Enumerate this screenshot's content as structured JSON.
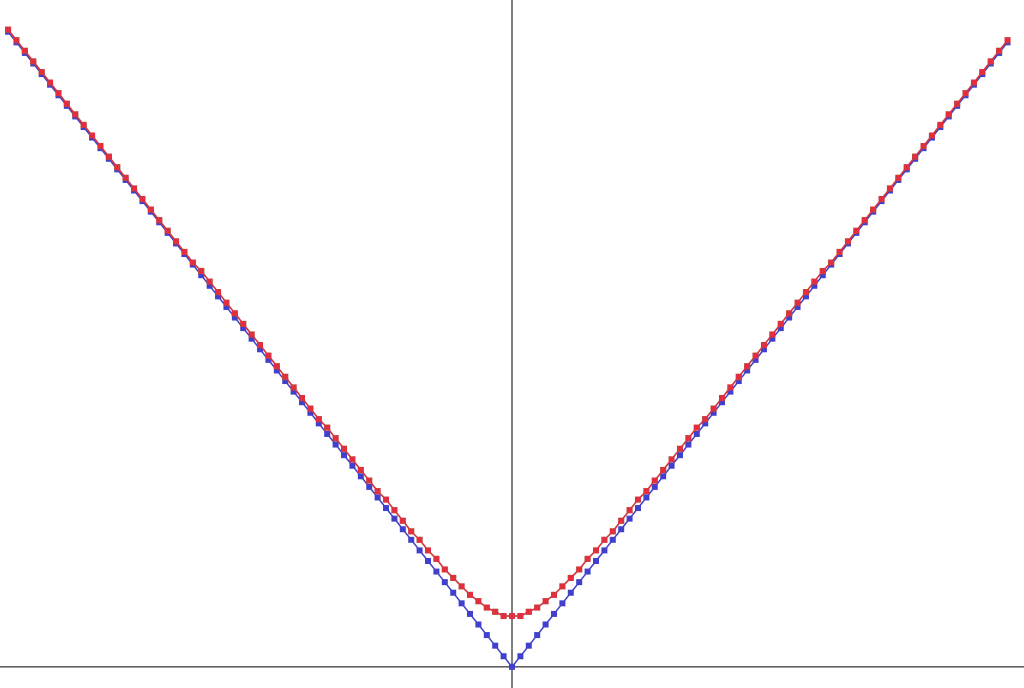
{
  "chart_data": {
    "type": "line",
    "x": [
      -3,
      -2.95,
      -2.9,
      -2.85,
      -2.8,
      -2.75,
      -2.7,
      -2.65,
      -2.6,
      -2.55,
      -2.5,
      -2.45,
      -2.4,
      -2.35,
      -2.3,
      -2.25,
      -2.2,
      -2.15,
      -2.1,
      -2.05,
      -2,
      -1.95,
      -1.9,
      -1.85,
      -1.8,
      -1.75,
      -1.7,
      -1.65,
      -1.6,
      -1.55,
      -1.5,
      -1.45,
      -1.4,
      -1.35,
      -1.3,
      -1.25,
      -1.2,
      -1.15,
      -1.1,
      -1.05,
      -1,
      -0.95,
      -0.9,
      -0.85,
      -0.8,
      -0.75,
      -0.7,
      -0.65,
      -0.6,
      -0.55,
      -0.5,
      -0.45,
      -0.4,
      -0.35,
      -0.3,
      -0.25,
      -0.2,
      -0.15,
      -0.1,
      -0.05,
      0,
      0.05,
      0.1,
      0.15,
      0.2,
      0.25,
      0.3,
      0.35,
      0.4,
      0.45,
      0.5,
      0.55,
      0.6,
      0.65,
      0.7,
      0.75,
      0.8,
      0.85,
      0.9,
      0.95,
      1,
      1.05,
      1.1,
      1.15,
      1.2,
      1.25,
      1.3,
      1.35,
      1.4,
      1.45,
      1.5,
      1.55,
      1.6,
      1.65,
      1.7,
      1.75,
      1.8,
      1.85,
      1.9,
      1.95,
      2,
      2.05,
      2.1,
      2.15,
      2.2,
      2.25,
      2.3,
      2.35,
      2.4,
      2.45,
      2.5,
      2.55,
      2.6,
      2.65,
      2.7,
      2.75,
      2.8,
      2.85,
      2.9,
      2.95
    ],
    "series": [
      {
        "color": "#4040cc",
        "values": [
          3,
          2.95,
          2.9,
          2.85,
          2.8,
          2.75,
          2.7,
          2.65,
          2.6,
          2.55,
          2.5,
          2.45,
          2.4,
          2.35,
          2.3,
          2.25,
          2.2,
          2.15,
          2.1,
          2.05,
          2,
          1.95,
          1.9,
          1.85,
          1.8,
          1.75,
          1.7,
          1.65,
          1.6,
          1.55,
          1.5,
          1.45,
          1.4,
          1.35,
          1.3,
          1.25,
          1.2,
          1.15,
          1.1,
          1.05,
          1,
          0.95,
          0.9,
          0.85,
          0.8,
          0.75,
          0.7,
          0.65,
          0.6,
          0.55,
          0.5,
          0.45,
          0.4,
          0.35,
          0.3,
          0.25,
          0.2,
          0.15,
          0.1,
          0.05,
          0,
          0.05,
          0.1,
          0.15,
          0.2,
          0.25,
          0.3,
          0.35,
          0.4,
          0.45,
          0.5,
          0.55,
          0.6,
          0.65,
          0.7,
          0.75,
          0.8,
          0.85,
          0.9,
          0.95,
          1,
          1.05,
          1.1,
          1.15,
          1.2,
          1.25,
          1.3,
          1.35,
          1.4,
          1.45,
          1.5,
          1.55,
          1.6,
          1.65,
          1.7,
          1.75,
          1.8,
          1.85,
          1.9,
          1.95,
          2,
          2.05,
          2.1,
          2.15,
          2.2,
          2.25,
          2.3,
          2.35,
          2.4,
          2.45,
          2.5,
          2.55,
          2.6,
          2.65,
          2.7,
          2.75,
          2.8,
          2.85,
          2.9,
          2.95
        ]
      },
      {
        "color": "#30b030",
        "values": [
          3.01,
          2.96,
          2.91,
          2.86,
          2.81,
          2.76,
          2.71,
          2.66,
          2.61,
          2.56,
          2.51,
          2.46,
          2.41,
          2.36,
          2.31,
          2.26,
          2.21,
          2.16,
          2.11,
          2.06,
          2.01,
          1.96,
          1.91,
          1.87,
          1.82,
          1.77,
          1.72,
          1.67,
          1.62,
          1.57,
          1.52,
          1.47,
          1.42,
          1.37,
          1.32,
          1.27,
          1.22,
          1.17,
          1.13,
          1.08,
          1.03,
          0.98,
          0.93,
          0.88,
          0.83,
          0.79,
          0.74,
          0.69,
          0.64,
          0.6,
          0.55,
          0.51,
          0.46,
          0.42,
          0.38,
          0.34,
          0.31,
          0.28,
          0.26,
          0.24,
          0.24,
          0.24,
          0.26,
          0.28,
          0.31,
          0.34,
          0.38,
          0.42,
          0.46,
          0.51,
          0.55,
          0.6,
          0.64,
          0.69,
          0.74,
          0.79,
          0.83,
          0.88,
          0.93,
          0.98,
          1.03,
          1.08,
          1.13,
          1.17,
          1.22,
          1.27,
          1.32,
          1.37,
          1.42,
          1.47,
          1.52,
          1.57,
          1.62,
          1.67,
          1.72,
          1.77,
          1.82,
          1.87,
          1.91,
          1.96,
          2.01,
          2.06,
          2.11,
          2.16,
          2.21,
          2.26,
          2.31,
          2.36,
          2.41,
          2.46,
          2.51,
          2.56,
          2.61,
          2.66,
          2.71,
          2.76,
          2.81,
          2.86,
          2.91,
          2.96
        ]
      },
      {
        "color": "#e03040",
        "values": [
          3.01,
          2.96,
          2.91,
          2.86,
          2.81,
          2.76,
          2.71,
          2.66,
          2.61,
          2.56,
          2.51,
          2.46,
          2.41,
          2.36,
          2.31,
          2.26,
          2.21,
          2.16,
          2.11,
          2.06,
          2.01,
          1.96,
          1.91,
          1.87,
          1.82,
          1.77,
          1.72,
          1.67,
          1.62,
          1.57,
          1.52,
          1.47,
          1.42,
          1.37,
          1.32,
          1.27,
          1.22,
          1.17,
          1.13,
          1.08,
          1.03,
          0.98,
          0.93,
          0.88,
          0.83,
          0.79,
          0.74,
          0.69,
          0.64,
          0.6,
          0.55,
          0.51,
          0.46,
          0.42,
          0.38,
          0.34,
          0.31,
          0.28,
          0.26,
          0.24,
          0.24,
          0.24,
          0.26,
          0.28,
          0.31,
          0.34,
          0.38,
          0.42,
          0.46,
          0.51,
          0.55,
          0.6,
          0.64,
          0.69,
          0.74,
          0.79,
          0.83,
          0.88,
          0.93,
          0.98,
          1.03,
          1.08,
          1.13,
          1.17,
          1.22,
          1.27,
          1.32,
          1.37,
          1.42,
          1.47,
          1.52,
          1.57,
          1.62,
          1.67,
          1.72,
          1.77,
          1.82,
          1.87,
          1.91,
          1.96,
          2.01,
          2.06,
          2.11,
          2.16,
          2.21,
          2.26,
          2.31,
          2.36,
          2.41,
          2.46,
          2.51,
          2.56,
          2.61,
          2.66,
          2.71,
          2.76,
          2.81,
          2.86,
          2.91,
          2.96
        ]
      }
    ],
    "xlim": [
      -3.048,
      3.048
    ],
    "ylim": [
      -0.1,
      3.15
    ]
  }
}
